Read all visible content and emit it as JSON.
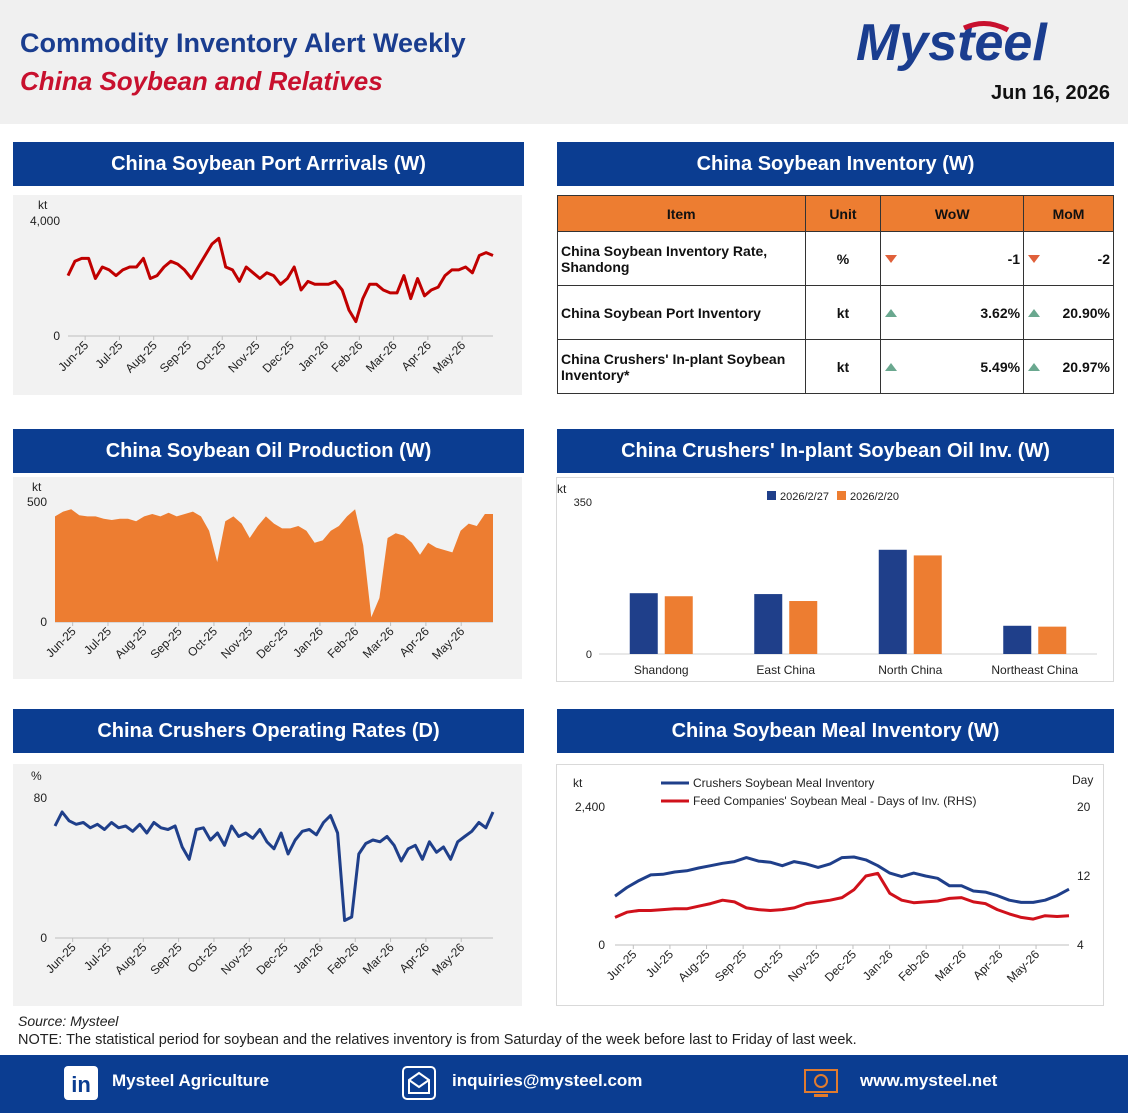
{
  "header": {
    "title": "Commodity Inventory Alert Weekly",
    "subtitle": "China Soybean and Relatives",
    "logo_text": "Mysteel",
    "date": "Jun 16, 2026"
  },
  "sections": {
    "port_arrivals": "China Soybean Port Arrrivals (W)",
    "inventory": "China Soybean Inventory (W)",
    "oil_production": "China Soybean Oil Production (W)",
    "oil_inv": "China Crushers' In-plant Soybean Oil Inv. (W)",
    "operating_rates": "China Crushers Operating Rates (D)",
    "meal_inv": "China Soybean Meal Inventory (W)"
  },
  "inventory_table": {
    "headers": [
      "Item",
      "Unit",
      "WoW",
      "MoM"
    ],
    "rows": [
      {
        "item": "China Soybean Inventory Rate, Shandong",
        "unit": "%",
        "wow": "-1",
        "wow_dir": "down",
        "mom": "-2",
        "mom_dir": "down"
      },
      {
        "item": "China Soybean Port Inventory",
        "unit": "kt",
        "wow": "3.62%",
        "wow_dir": "up",
        "mom": "20.90%",
        "mom_dir": "up"
      },
      {
        "item": "China Crushers' In-plant Soybean Inventory*",
        "unit": "kt",
        "wow": "5.49%",
        "wow_dir": "up",
        "mom": "20.97%",
        "mom_dir": "up"
      }
    ]
  },
  "colors": {
    "navy": "#0b3d91",
    "red": "#c8102e",
    "orange": "#ed7d31",
    "up": "#6aa88f",
    "down": "#e0603a"
  },
  "chart_data": [
    {
      "id": "port_arrivals",
      "type": "line",
      "ylabel": "kt",
      "ylim": [
        0,
        4000
      ],
      "yticks": [
        "4,000",
        "0"
      ],
      "xticks": [
        "Jun-25",
        "Jul-25",
        "Aug-25",
        "Sep-25",
        "Oct-25",
        "Nov-25",
        "Dec-25",
        "Jan-26",
        "Feb-26",
        "Mar-26",
        "Apr-26",
        "May-26"
      ],
      "series": [
        {
          "color": "#c00000",
          "values": [
            2100,
            2600,
            2700,
            2700,
            2000,
            2400,
            2300,
            2100,
            2300,
            2400,
            2400,
            2700,
            2000,
            2100,
            2400,
            2600,
            2500,
            2300,
            2000,
            2400,
            2800,
            3200,
            3400,
            2400,
            2300,
            1900,
            2400,
            2200,
            2000,
            2200,
            2100,
            1800,
            2000,
            2400,
            1600,
            1900,
            1800,
            1800,
            1800,
            1900,
            1600,
            900,
            500,
            1300,
            1800,
            1800,
            1600,
            1500,
            1500,
            2100,
            1300,
            2000,
            1400,
            1600,
            1700,
            2100,
            2300,
            2300,
            2400,
            2200,
            2800,
            2900,
            2800
          ]
        }
      ]
    },
    {
      "id": "oil_production",
      "type": "area",
      "ylabel": "kt",
      "ylim": [
        0,
        500
      ],
      "yticks": [
        "500",
        "0"
      ],
      "xticks": [
        "Jun-25",
        "Jul-25",
        "Aug-25",
        "Sep-25",
        "Oct-25",
        "Nov-25",
        "Dec-25",
        "Jan-26",
        "Feb-26",
        "Mar-26",
        "Apr-26",
        "May-26"
      ],
      "series": [
        {
          "color": "#ed7d31",
          "values": [
            440,
            460,
            470,
            445,
            440,
            440,
            430,
            425,
            430,
            430,
            420,
            440,
            450,
            440,
            455,
            440,
            450,
            460,
            440,
            380,
            250,
            420,
            440,
            410,
            350,
            400,
            440,
            410,
            390,
            390,
            400,
            380,
            330,
            340,
            380,
            400,
            440,
            470,
            320,
            20,
            100,
            350,
            370,
            360,
            330,
            280,
            330,
            310,
            300,
            290,
            380,
            410,
            400,
            450,
            450
          ]
        }
      ]
    },
    {
      "id": "oil_inv",
      "type": "bar",
      "ylabel": "kt",
      "ylim": [
        0,
        350
      ],
      "yticks": [
        "350",
        "0"
      ],
      "categories": [
        "Shandong",
        "East China",
        "North China",
        "Northeast China"
      ],
      "series": [
        {
          "name": "2026/2/27",
          "color": "#1f3f8a",
          "values": [
            140,
            138,
            240,
            65
          ]
        },
        {
          "name": "2026/2/20",
          "color": "#ed7d31",
          "values": [
            133,
            122,
            227,
            63
          ]
        }
      ]
    },
    {
      "id": "operating_rates",
      "type": "line",
      "ylabel": "%",
      "ylim": [
        0,
        80
      ],
      "yticks": [
        "80",
        "0"
      ],
      "xticks": [
        "Jun-25",
        "Jul-25",
        "Aug-25",
        "Sep-25",
        "Oct-25",
        "Nov-25",
        "Dec-25",
        "Jan-26",
        "Feb-26",
        "Mar-26",
        "Apr-26",
        "May-26"
      ],
      "series": [
        {
          "color": "#1f3f8a",
          "values": [
            64,
            72,
            67,
            65,
            66,
            63,
            65,
            62,
            66,
            63,
            64,
            61,
            65,
            60,
            66,
            63,
            62,
            64,
            52,
            45,
            62,
            63,
            56,
            60,
            53,
            64,
            58,
            60,
            57,
            62,
            55,
            51,
            60,
            48,
            56,
            61,
            62,
            59,
            66,
            70,
            60,
            10,
            12,
            48,
            54,
            56,
            55,
            58,
            53,
            44,
            51,
            53,
            45,
            55,
            49,
            52,
            45,
            55,
            58,
            61,
            66,
            63,
            72
          ]
        }
      ]
    },
    {
      "id": "meal_inv",
      "type": "line",
      "ylabel": "kt",
      "ylabel_right": "Day",
      "ylim": [
        0,
        2400
      ],
      "ylim_right": [
        4,
        20
      ],
      "yticks": [
        "2,400",
        "0"
      ],
      "yticks_right": [
        "20",
        "12",
        "4"
      ],
      "xticks": [
        "Jun-25",
        "Jul-25",
        "Aug-25",
        "Sep-25",
        "Oct-25",
        "Nov-25",
        "Dec-25",
        "Jan-26",
        "Feb-26",
        "Mar-26",
        "Apr-26",
        "May-26"
      ],
      "series": [
        {
          "name": "Crushers Soybean Meal Inventory",
          "color": "#1f3f8a",
          "axis": "left",
          "values": [
            850,
            1000,
            1120,
            1220,
            1230,
            1270,
            1290,
            1340,
            1380,
            1420,
            1450,
            1520,
            1460,
            1440,
            1380,
            1450,
            1410,
            1350,
            1410,
            1520,
            1530,
            1480,
            1380,
            1250,
            1190,
            1250,
            1200,
            1160,
            1030,
            1030,
            940,
            920,
            860,
            780,
            740,
            740,
            780,
            860,
            970
          ]
        },
        {
          "name": "Feed Companies' Soybean Meal - Days of Inv. (RHS)",
          "color": "#d0111b",
          "axis": "right",
          "values": [
            7.2,
            7.8,
            8.0,
            8.0,
            8.1,
            8.2,
            8.2,
            8.5,
            8.8,
            9.2,
            9.0,
            8.3,
            8.1,
            8.0,
            8.1,
            8.3,
            8.8,
            9.0,
            9.2,
            9.5,
            10.4,
            12.0,
            12.3,
            10.0,
            9.2,
            8.9,
            9.0,
            9.1,
            9.4,
            9.5,
            9.0,
            8.8,
            8.1,
            7.6,
            7.2,
            7.0,
            7.4,
            7.3,
            7.4
          ]
        }
      ]
    }
  ],
  "source": "Source: Mysteel",
  "note": "NOTE: The statistical period for soybean and the relatives inventory is from Saturday of the week before last to Friday of last week.",
  "footer": {
    "linkedin_icon": "in",
    "linkedin": "Mysteel Agriculture",
    "email": "inquiries@mysteel.com",
    "website": "www.mysteel.net"
  }
}
